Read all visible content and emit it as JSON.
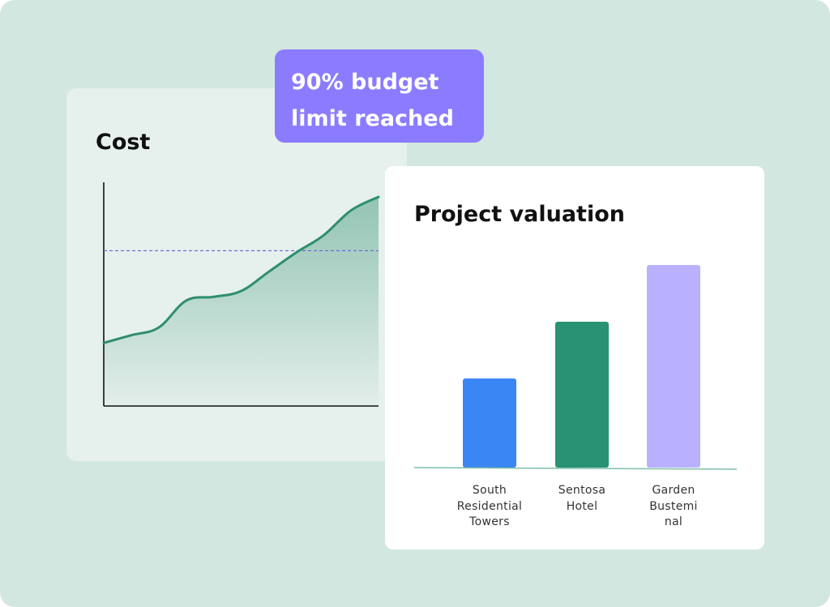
{
  "alert": {
    "line1": "90% budget",
    "line2": "limit reached",
    "color": "#8b7cff"
  },
  "chart_data": [
    {
      "type": "area",
      "title": "Cost",
      "xlabel": "",
      "ylabel": "",
      "x": [
        0,
        1,
        2,
        3,
        4,
        5,
        6,
        7,
        8,
        9,
        10
      ],
      "values": [
        24,
        28,
        32,
        46,
        48,
        51,
        61,
        71,
        80,
        93,
        100
      ],
      "ylim": [
        0,
        100
      ],
      "threshold": 72,
      "colors": {
        "line": "#2e8f6c",
        "threshold": "#6f6cd8"
      }
    },
    {
      "type": "bar",
      "title": "Project valuation",
      "categories": [
        "South Residential Towers",
        "Sentosa Hotel",
        "Garden Bustemi nal"
      ],
      "category_lines": [
        [
          "South",
          "Residential",
          "Towers"
        ],
        [
          "Sentosa",
          "Hotel"
        ],
        [
          "Garden",
          "Bustemi",
          "nal"
        ]
      ],
      "values": [
        44,
        72,
        100
      ],
      "ylim": [
        0,
        100
      ],
      "colors": [
        "#3b86f5",
        "#289272",
        "#b9b1fe"
      ]
    }
  ]
}
